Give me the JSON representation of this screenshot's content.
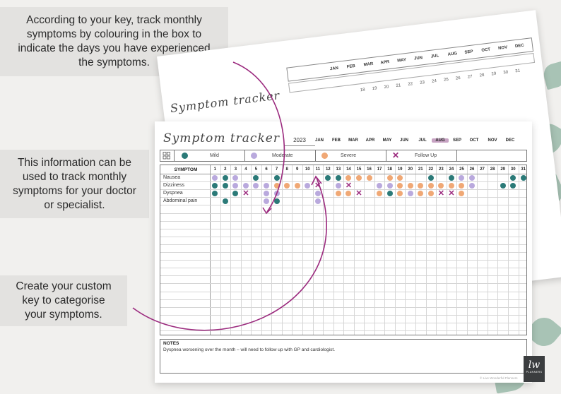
{
  "callouts": {
    "top": [
      "According to your key, track monthly",
      "symptoms by colouring in the box to",
      "indicate the days you have experienced",
      "the symptoms."
    ],
    "middle": [
      "This information can be",
      "used to track monthly",
      "symptoms for your doctor",
      "or specialist."
    ],
    "bottom": [
      "Create your custom",
      "key to categorise",
      "your symptoms."
    ]
  },
  "sheet": {
    "title": "Symptom tracker",
    "year": "2023",
    "months": [
      "JAN",
      "FEB",
      "MAR",
      "APR",
      "MAY",
      "JUN",
      "JUL",
      "AUG",
      "SEP",
      "OCT",
      "NOV",
      "DEC"
    ],
    "active_month_index": 7,
    "key": [
      {
        "label": "Mild",
        "type": "dot",
        "color": "#2b7a78"
      },
      {
        "label": "Moderate",
        "type": "dot",
        "color": "#b9a9dd"
      },
      {
        "label": "Severe",
        "type": "dot",
        "color": "#f0a875"
      },
      {
        "label": "Follow Up",
        "type": "x",
        "color": "#9b2a7e"
      }
    ],
    "symptom_header": "SYMPTOM",
    "days": [
      "1",
      "2",
      "3",
      "4",
      "5",
      "6",
      "7",
      "8",
      "9",
      "10",
      "11",
      "12",
      "13",
      "14",
      "15",
      "16",
      "17",
      "18",
      "19",
      "20",
      "21",
      "22",
      "23",
      "24",
      "25",
      "26",
      "27",
      "28",
      "29",
      "30",
      "31"
    ],
    "symptoms": [
      {
        "name": "Nausea",
        "marks": [
          [
            1,
            "m"
          ],
          [
            2,
            "M"
          ],
          [
            3,
            "m"
          ],
          [
            5,
            "M"
          ],
          [
            7,
            "M"
          ],
          [
            12,
            "M"
          ],
          [
            13,
            "M"
          ],
          [
            14,
            "S"
          ],
          [
            15,
            "S"
          ],
          [
            16,
            "S"
          ],
          [
            18,
            "S"
          ],
          [
            19,
            "S"
          ],
          [
            22,
            "M"
          ],
          [
            24,
            "M"
          ],
          [
            25,
            "m"
          ],
          [
            26,
            "m"
          ],
          [
            30,
            "M"
          ],
          [
            31,
            "M"
          ]
        ]
      },
      {
        "name": "Dizziness",
        "marks": [
          [
            1,
            "M"
          ],
          [
            2,
            "M"
          ],
          [
            3,
            "m"
          ],
          [
            4,
            "m"
          ],
          [
            5,
            "m"
          ],
          [
            6,
            "m"
          ],
          [
            7,
            "S"
          ],
          [
            8,
            "S"
          ],
          [
            9,
            "S"
          ],
          [
            10,
            "m"
          ],
          [
            11,
            "X"
          ],
          [
            13,
            "m"
          ],
          [
            14,
            "X"
          ],
          [
            17,
            "m"
          ],
          [
            18,
            "m"
          ],
          [
            19,
            "S"
          ],
          [
            20,
            "S"
          ],
          [
            21,
            "S"
          ],
          [
            22,
            "S"
          ],
          [
            23,
            "S"
          ],
          [
            24,
            "S"
          ],
          [
            25,
            "S"
          ],
          [
            26,
            "m"
          ],
          [
            29,
            "M"
          ],
          [
            30,
            "M"
          ]
        ]
      },
      {
        "name": "Dyspnea",
        "marks": [
          [
            1,
            "M"
          ],
          [
            3,
            "M"
          ],
          [
            4,
            "X"
          ],
          [
            6,
            "m"
          ],
          [
            7,
            "m"
          ],
          [
            11,
            "m"
          ],
          [
            13,
            "S"
          ],
          [
            14,
            "S"
          ],
          [
            15,
            "X"
          ],
          [
            17,
            "S"
          ],
          [
            18,
            "M"
          ],
          [
            19,
            "S"
          ],
          [
            20,
            "m"
          ],
          [
            21,
            "S"
          ],
          [
            22,
            "S"
          ],
          [
            23,
            "X"
          ],
          [
            24,
            "X"
          ],
          [
            25,
            "S"
          ]
        ]
      },
      {
        "name": "Abdominal pain",
        "marks": [
          [
            2,
            "M"
          ],
          [
            6,
            "m"
          ],
          [
            7,
            "M"
          ],
          [
            11,
            "m"
          ]
        ]
      }
    ],
    "notes_title": "NOTES",
    "notes_body": "Dyspnea worsening over the month – will need to follow up with GP and cardiologist.",
    "copyright": "© Live Wonderful Planners"
  },
  "logo": {
    "mark": "lw",
    "text": "PLANNERS"
  },
  "colors": {
    "mild": "#2b7a78",
    "moderate": "#b9a9dd",
    "severe": "#f0a875",
    "follow_up": "#9b2a7e",
    "arrow": "#9b2a7e"
  }
}
